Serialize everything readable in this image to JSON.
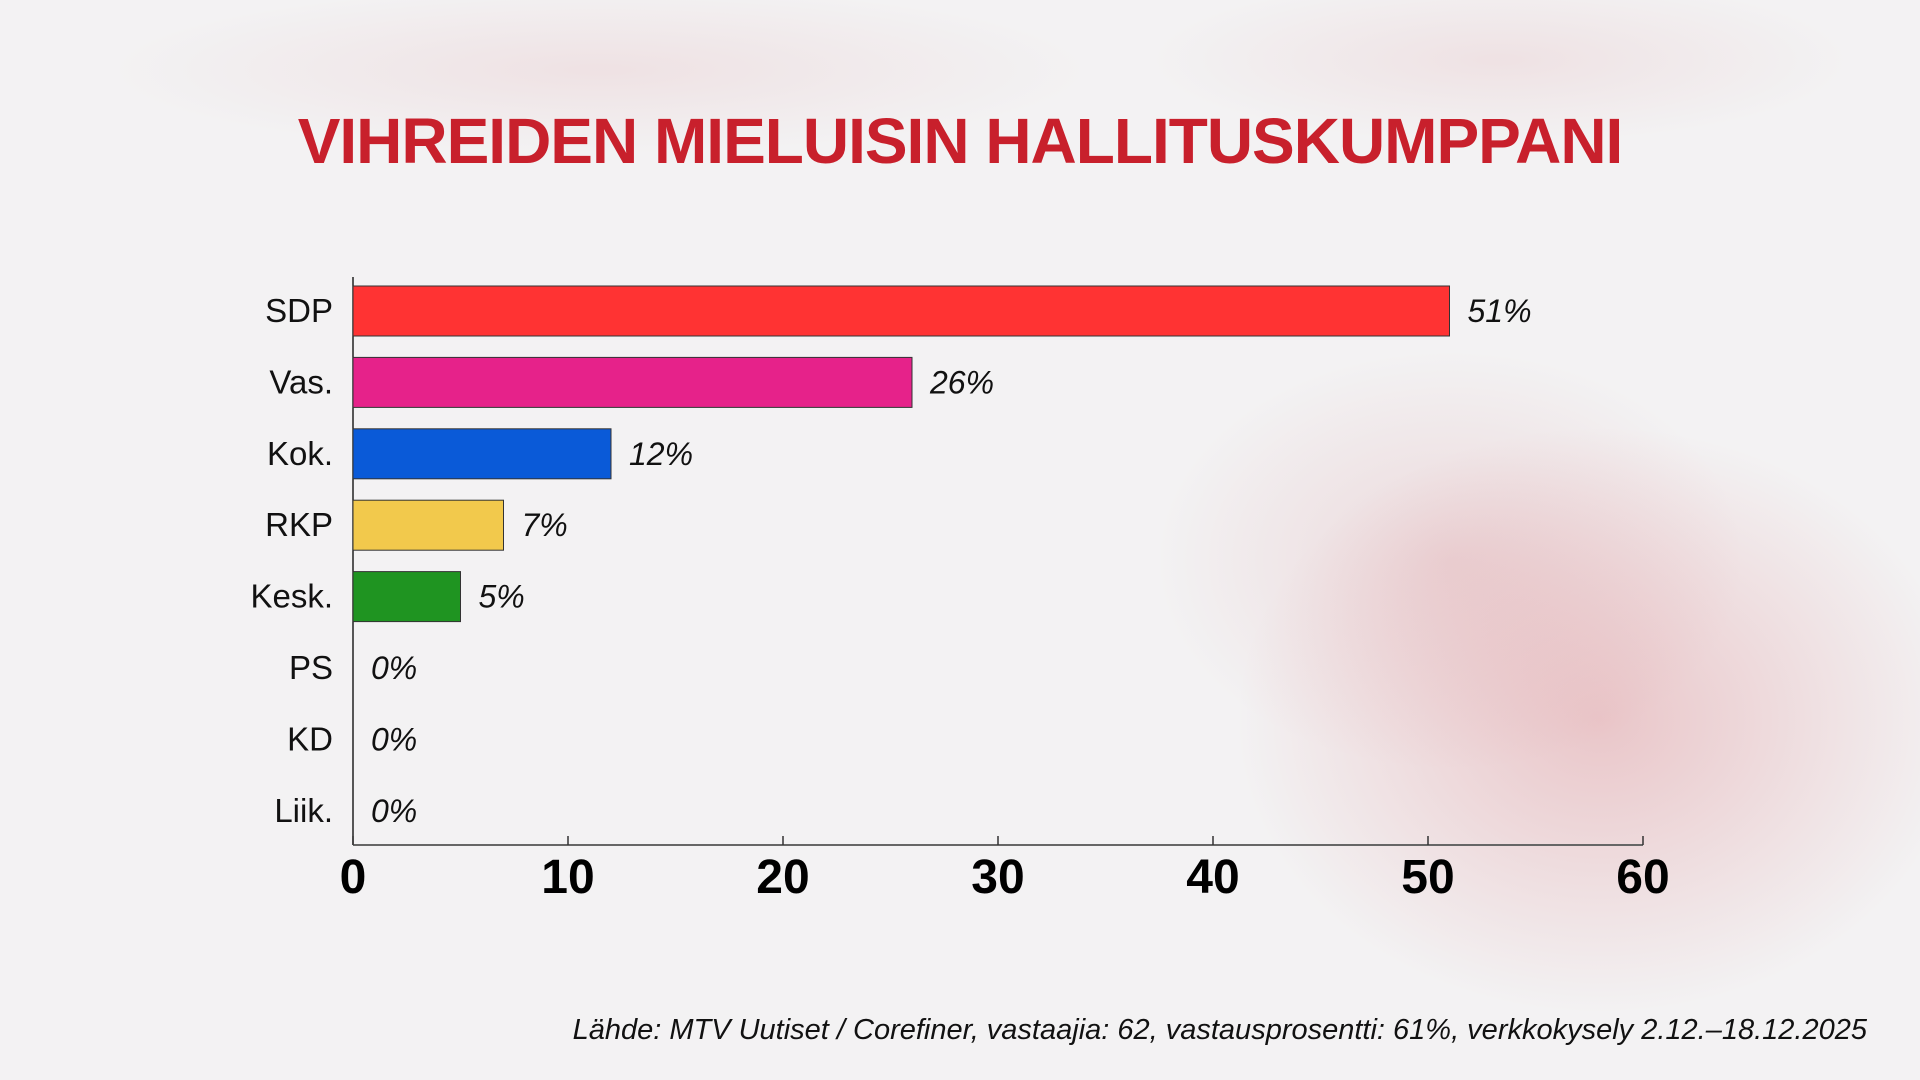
{
  "chart_data": {
    "type": "bar",
    "orientation": "horizontal",
    "title": "VIHREIDEN MIELUISIN HALLITUSKUMPPANI",
    "categories": [
      "SDP",
      "Vas.",
      "Kok.",
      "RKP",
      "Kesk.",
      "PS",
      "KD",
      "Liik."
    ],
    "values": [
      51,
      26,
      12,
      7,
      5,
      0,
      0,
      0
    ],
    "value_labels": [
      "51%",
      "26%",
      "12%",
      "7%",
      "5%",
      "0%",
      "0%",
      "0%"
    ],
    "colors": [
      "#ff3333",
      "#e6228a",
      "#0a5ad8",
      "#f2c94c",
      "#1f9421",
      "#888888",
      "#888888",
      "#888888"
    ],
    "xlim": [
      0,
      60
    ],
    "xticks": [
      0,
      10,
      20,
      30,
      40,
      50,
      60
    ],
    "xlabel": "",
    "ylabel": "",
    "grid": false,
    "source": "Lähde: MTV Uutiset / Corefiner, vastaajia: 62, vastausprosentti: 61%, verkkokysely 2.12.–18.12.2025"
  },
  "title_color": "#c8202c"
}
